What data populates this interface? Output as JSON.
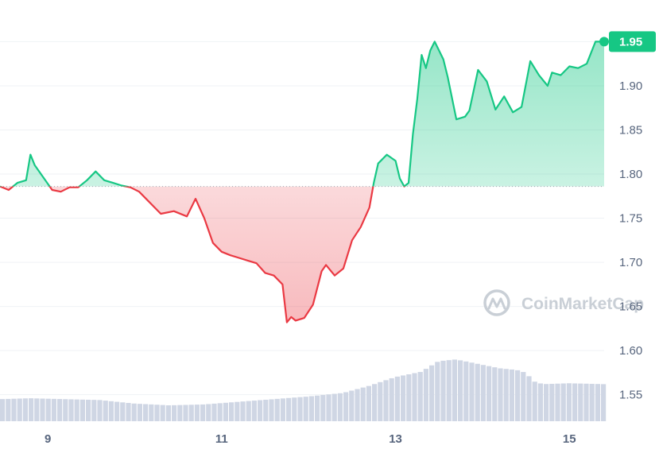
{
  "chart_data": {
    "type": "line",
    "title": "",
    "xlabel": "",
    "ylabel": "",
    "x_ticks": [
      "9",
      "11",
      "13",
      "15"
    ],
    "x_tick_values": [
      9,
      11,
      13,
      15
    ],
    "x_range": [
      8.45,
      15.4
    ],
    "y_ticks": [
      "1.55",
      "1.60",
      "1.65",
      "1.70",
      "1.75",
      "1.80",
      "1.85",
      "1.90",
      "1.95"
    ],
    "y_range": [
      1.52,
      1.99
    ],
    "reference_price": 1.786,
    "last_price_label": "1.95",
    "grid": "horizontal",
    "colors": {
      "up": "#16c784",
      "down": "#ea3943",
      "volume": "#cfd6e4",
      "grid": "#eff2f5",
      "axis_text": "#58667e"
    },
    "price_series": {
      "name": "",
      "x": [
        8.45,
        8.55,
        8.65,
        8.75,
        8.8,
        8.85,
        8.95,
        9.05,
        9.15,
        9.25,
        9.35,
        9.45,
        9.55,
        9.65,
        9.75,
        9.85,
        9.95,
        10.05,
        10.15,
        10.3,
        10.45,
        10.6,
        10.7,
        10.8,
        10.9,
        11.0,
        11.1,
        11.2,
        11.3,
        11.4,
        11.5,
        11.6,
        11.7,
        11.75,
        11.8,
        11.85,
        11.95,
        12.05,
        12.15,
        12.2,
        12.3,
        12.4,
        12.5,
        12.6,
        12.7,
        12.75,
        12.8,
        12.9,
        13.0,
        13.05,
        13.1,
        13.15,
        13.2,
        13.25,
        13.3,
        13.35,
        13.4,
        13.45,
        13.55,
        13.6,
        13.7,
        13.8,
        13.85,
        13.95,
        14.05,
        14.15,
        14.25,
        14.35,
        14.45,
        14.55,
        14.65,
        14.75,
        14.8,
        14.9,
        15.0,
        15.1,
        15.2,
        15.3,
        15.4
      ],
      "values": [
        1.786,
        1.782,
        1.79,
        1.793,
        1.822,
        1.81,
        1.796,
        1.782,
        1.78,
        1.785,
        1.785,
        1.793,
        1.803,
        1.793,
        1.79,
        1.787,
        1.785,
        1.78,
        1.77,
        1.755,
        1.758,
        1.752,
        1.772,
        1.75,
        1.722,
        1.712,
        1.708,
        1.705,
        1.702,
        1.699,
        1.688,
        1.685,
        1.675,
        1.632,
        1.638,
        1.634,
        1.637,
        1.652,
        1.69,
        1.697,
        1.685,
        1.693,
        1.725,
        1.74,
        1.762,
        1.79,
        1.812,
        1.822,
        1.815,
        1.795,
        1.786,
        1.79,
        1.845,
        1.885,
        1.935,
        1.92,
        1.94,
        1.95,
        1.93,
        1.91,
        1.862,
        1.865,
        1.872,
        1.918,
        1.905,
        1.873,
        1.888,
        1.87,
        1.876,
        1.928,
        1.912,
        1.9,
        1.915,
        1.912,
        1.922,
        1.92,
        1.925,
        1.95,
        1.95
      ]
    },
    "volume_series": {
      "name": "",
      "x": [
        8.45,
        8.8,
        9.2,
        9.6,
        10.0,
        10.4,
        10.8,
        11.2,
        11.6,
        12.0,
        12.4,
        12.7,
        13.0,
        13.3,
        13.5,
        13.7,
        13.9,
        14.2,
        14.4,
        14.5,
        14.6,
        14.7,
        15.0,
        15.4
      ],
      "values": [
        1.545,
        1.546,
        1.545,
        1.544,
        1.54,
        1.538,
        1.539,
        1.542,
        1.545,
        1.548,
        1.552,
        1.56,
        1.57,
        1.576,
        1.588,
        1.59,
        1.586,
        1.58,
        1.578,
        1.575,
        1.565,
        1.562,
        1.563,
        1.562
      ]
    }
  },
  "watermark": {
    "text": "CoinMarketCap",
    "icon": "coinmarketcap-logo-icon"
  }
}
